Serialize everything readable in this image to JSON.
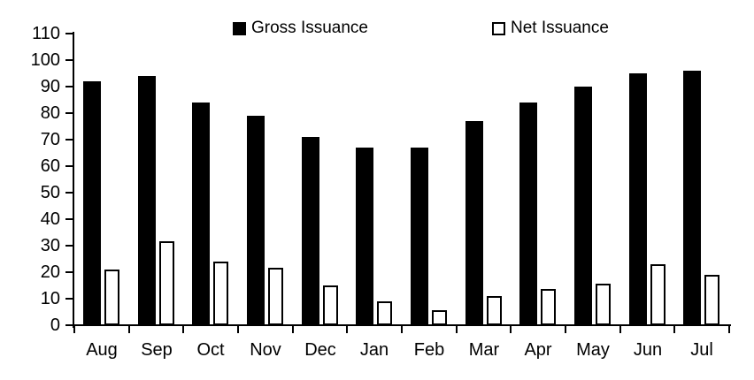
{
  "chart_data": {
    "type": "bar",
    "title": "",
    "categories": [
      "Aug",
      "Sep",
      "Oct",
      "Nov",
      "Dec",
      "Jan",
      "Feb",
      "Mar",
      "Apr",
      "May",
      "Jun",
      "Jul"
    ],
    "series": [
      {
        "name": "Gross Issuance",
        "style": "filled",
        "color": "#000000",
        "values": [
          92,
          94,
          84,
          79,
          71,
          67,
          67,
          77,
          84,
          90,
          95,
          96
        ]
      },
      {
        "name": "Net Issuance",
        "style": "hollow",
        "color": "#ffffff",
        "border_color": "#000000",
        "values": [
          21,
          31.5,
          24,
          21.5,
          15,
          9,
          5.5,
          11,
          13.5,
          15.5,
          23,
          19
        ]
      }
    ],
    "xlabel": "",
    "ylabel": "",
    "ylim": [
      0,
      110
    ],
    "ytick_step": 10,
    "ytick_labels": [
      "0",
      "10",
      "20",
      "30",
      "40",
      "50",
      "60",
      "70",
      "80",
      "90",
      "100",
      "110"
    ],
    "grid": false,
    "legend_position": "top",
    "axis_color": "#000000",
    "background_color": "#ffffff"
  },
  "legend": {
    "gross_label": "Gross Issuance",
    "net_label": "Net Issuance"
  }
}
